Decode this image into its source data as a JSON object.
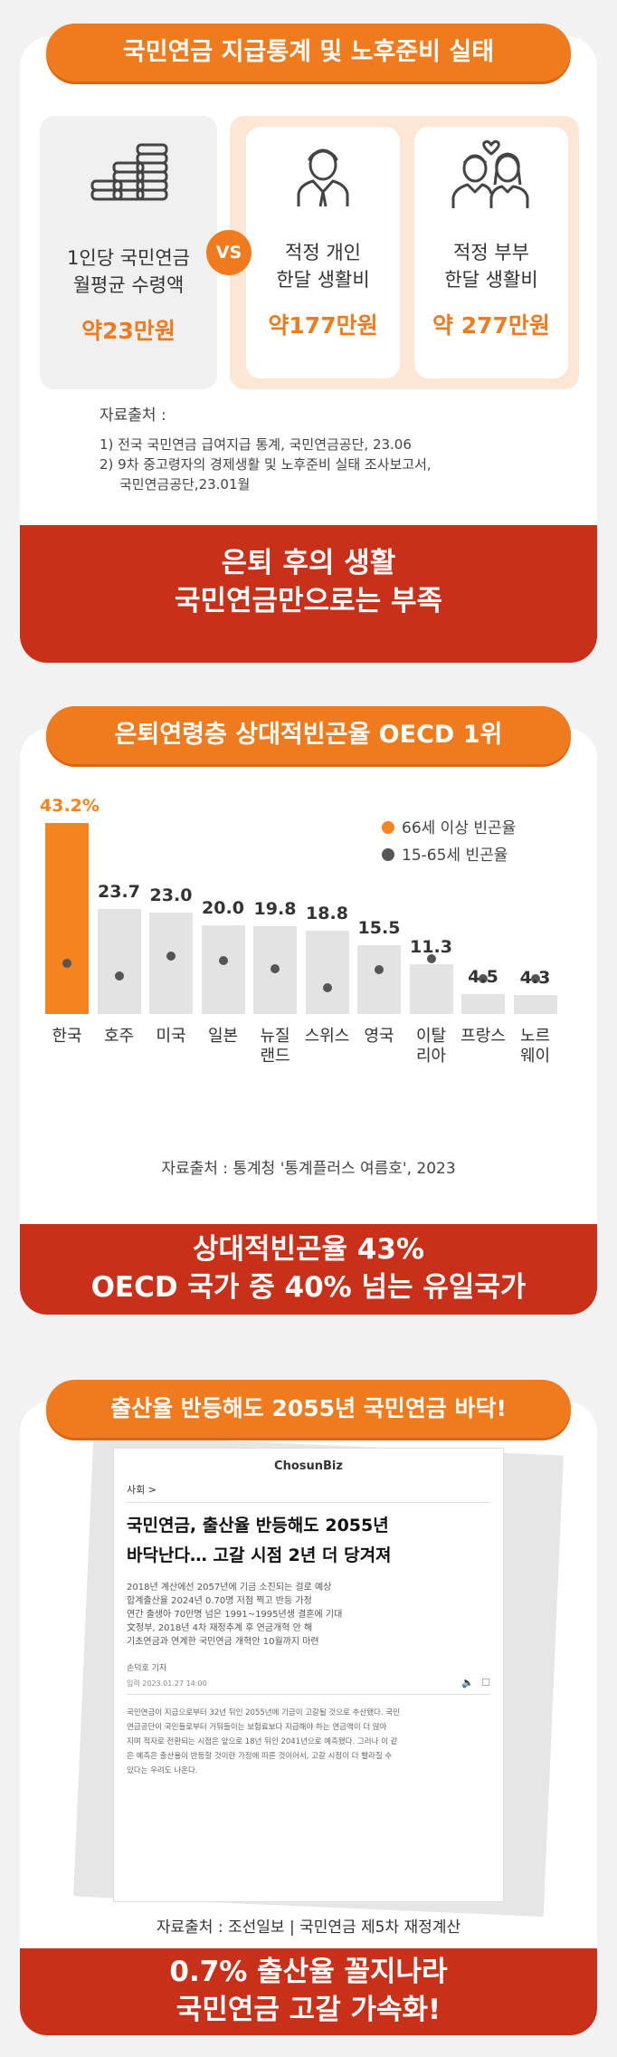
{
  "section1": {
    "title": "국민연금 지급통계 및 노후준비 실태",
    "box1": {
      "label_line1": "1인당 국민연금",
      "label_line2": "월평균 수령액",
      "value": "약23만원",
      "icon": "coins-icon"
    },
    "vs": "VS",
    "box2": {
      "label_line1": "적정 개인",
      "label_line2": "한달 생활비",
      "value": "약177만원",
      "icon": "person-icon"
    },
    "box3": {
      "label_line1": "적정 부부",
      "label_line2": "한달 생활비",
      "value": "약 277만원",
      "icon": "couple-icon"
    },
    "source_label": "자료출처 :",
    "source1": "1) 전국 국민연금 급여지급 통계, 국민연금공단, 23.06",
    "source2": "2) 9차 중고령자의 경제생활 및 노후준비 실태 조사보고서,",
    "source3": "국민연금공단,23.01월",
    "banner_line1": "은퇴 후의 생활",
    "banner_line2": "국민연금만으로는 부족"
  },
  "section2": {
    "title": "은퇴연령층 상대적빈곤율 OECD 1위",
    "source": "자료출처 : 통계청 '통계플러스 여름호', 2023",
    "banner_line1": "상대적빈곤율 43%",
    "banner_line2": "OECD 국가 중 40% 넘는 유일국가"
  },
  "chart_data": {
    "type": "bar",
    "categories": [
      "한국",
      "호주",
      "미국",
      "일본",
      "뉴질\n랜드",
      "스위스",
      "영국",
      "이탈\n리아",
      "프랑스",
      "노르\n웨이"
    ],
    "value_labels": [
      "43.2%",
      "23.7",
      "23.0",
      "20.0",
      "19.8",
      "18.8",
      "15.5",
      "11.3",
      "4.5",
      "4.3"
    ],
    "series": [
      {
        "name": "66세 이상 빈곤율",
        "values": [
          43.2,
          23.7,
          23.0,
          20.0,
          19.8,
          18.8,
          15.5,
          11.3,
          4.5,
          4.3
        ]
      },
      {
        "name": "15-65세 빈곤율",
        "values": [
          11.5,
          8.5,
          13.0,
          12.0,
          10.2,
          6.0,
          10.0,
          12.5,
          8.0,
          8.0
        ]
      }
    ],
    "ylim": [
      0,
      45
    ],
    "legend": "top-right",
    "colors": {
      "highlight": "#f5831f",
      "bar": "#e3e3e3",
      "dot": "#555555"
    }
  },
  "section3": {
    "title": "출산율 반등해도 2055년 국민연금 바닥!",
    "logo": "ChosunBiz",
    "category": "사회 >",
    "headline_line1": "국민연금, 출산율 반등해도 2055년",
    "headline_line2": "바닥난다… 고갈 시점 2년 더 당겨져",
    "lead": [
      "2018년 계산에선 2057년에 기금 소진되는 걸로 예상",
      "합계출산율 2024년 0.70명 저점 찍고 반등 가정",
      "연간 출생아 70만명 넘은 1991~1995년생 결혼에 기대",
      "文정부, 2018년 4차 재정추계 후 연금개혁 안 해",
      "기초연금과 연계한 국민연금 개혁안 10월까지 마련"
    ],
    "reporter": "손덕호 기자",
    "date": "입력 2023.01.27 14:00",
    "body": [
      "국민연금이 지금으로부터 32년 뒤인 2055년에 기금이 고갈될 것으로 추산됐다. 국민",
      "연금공단이 국민들로부터 거둬들이는 보험료보다 지급해야 하는 연금액이 더 많아",
      "지며 적자로 전환되는 시점은 앞으로 18년 뒤인 2041년으로 예측됐다. 그러나 이 같",
      "은 예측은 출산율이 반등할 것이란 가정에 따른 것이어서, 고갈 시점이 더 빨라질 수",
      "있다는 우려도 나온다."
    ],
    "source": "자료출처 : 조선일보 | 국민연금 제5차 재정계산",
    "banner_line1": "0.7% 출산율 꼴지나라",
    "banner_line2": "국민연금 고갈 가속화!"
  }
}
